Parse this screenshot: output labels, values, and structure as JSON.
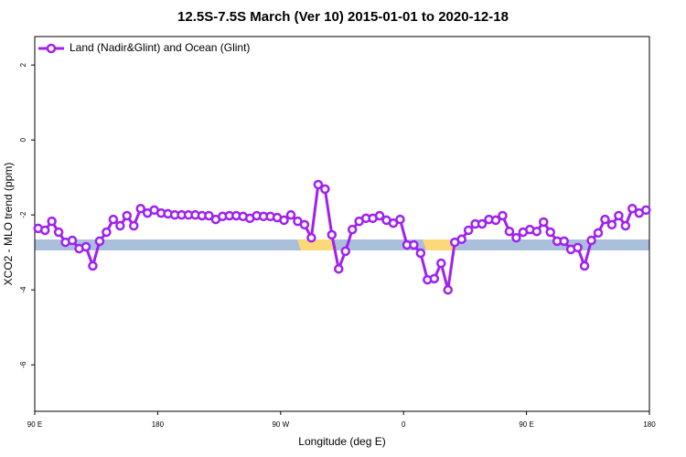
{
  "chart_data": {
    "type": "line",
    "title": "12.5S-7.5S March (Ver 10)   2015-01-01 to 2020-12-18",
    "x_label": "Longitude (deg E)",
    "y_label": "XCO2 - MLO trend (ppm)",
    "xlim": [
      90,
      540
    ],
    "xticks": [
      {
        "value": 90,
        "label": "90 E"
      },
      180,
      {
        "value": 270,
        "label": "90 W"
      },
      {
        "value": 360,
        "label": "0"
      },
      {
        "value": 450,
        "label": "90 E"
      },
      {
        "value": 540,
        "label": "180"
      }
    ],
    "ylim": [
      -7.24,
      2.76
    ],
    "yticks": [
      2,
      0,
      -2,
      -4,
      -6
    ],
    "legend": "top-left",
    "x": [
      92.5,
      97.5,
      102.5,
      107.5,
      112.5,
      117.5,
      122.5,
      127.5,
      132.5,
      137.5,
      142.5,
      147.5,
      152.5,
      157.5,
      162.5,
      167.5,
      172.5,
      177.5,
      182.5,
      187.5,
      192.5,
      197.5,
      202.5,
      207.5,
      212.5,
      217.5,
      222.5,
      227.5,
      232.5,
      237.5,
      242.5,
      247.5,
      252.5,
      257.5,
      262.5,
      267.5,
      272.5,
      277.5,
      282.5,
      287.5,
      292.5,
      297.5,
      302.5,
      307.5,
      312.5,
      317.5,
      322.5,
      327.5,
      332.5,
      337.5,
      342.5,
      347.5,
      352.5,
      357.5,
      362.5,
      367.5,
      372.5,
      377.5,
      382.5,
      387.5,
      392.5,
      397.5,
      402.5,
      407.5,
      412.5,
      417.5,
      422.5,
      427.5,
      432.5,
      437.5,
      442.5,
      447.5,
      452.5,
      457.5,
      462.5,
      467.5,
      472.5,
      477.5,
      482.5,
      487.5,
      492.5,
      497.5,
      502.5,
      507.5,
      512.5,
      517.5,
      522.5,
      527.5,
      532.5,
      537.5
    ],
    "series": [
      {
        "name": "Land (Nadir&Glint) and Ocean (Glint)",
        "color": "#a020f0",
        "values": [
          -2.36,
          -2.41,
          -2.17,
          -2.46,
          -2.73,
          -2.68,
          -2.9,
          -2.85,
          -3.36,
          -2.7,
          -2.46,
          -2.12,
          -2.29,
          -2.02,
          -2.29,
          -1.83,
          -1.95,
          -1.87,
          -1.95,
          -1.97,
          -2.0,
          -2.0,
          -2.0,
          -2.0,
          -2.02,
          -2.02,
          -2.12,
          -2.04,
          -2.02,
          -2.02,
          -2.04,
          -2.09,
          -2.02,
          -2.04,
          -2.04,
          -2.07,
          -2.14,
          -2.0,
          -2.17,
          -2.26,
          -2.61,
          -1.19,
          -1.31,
          -2.53,
          -3.44,
          -2.97,
          -2.39,
          -2.17,
          -2.09,
          -2.09,
          -2.02,
          -2.14,
          -2.22,
          -2.12,
          -2.8,
          -2.8,
          -3.02,
          -3.73,
          -3.7,
          -3.29,
          -4.0,
          -2.73,
          -2.65,
          -2.41,
          -2.24,
          -2.24,
          -2.12,
          -2.14,
          -2.02,
          -2.44,
          -2.61,
          -2.46,
          -2.39,
          -2.44,
          -2.19,
          -2.46,
          -2.7,
          -2.7,
          -2.92,
          -2.87,
          -3.36,
          -2.68,
          -2.48,
          -2.12,
          -2.26,
          -2.02,
          -2.29,
          -1.83,
          -1.95,
          -1.87
        ]
      }
    ]
  }
}
